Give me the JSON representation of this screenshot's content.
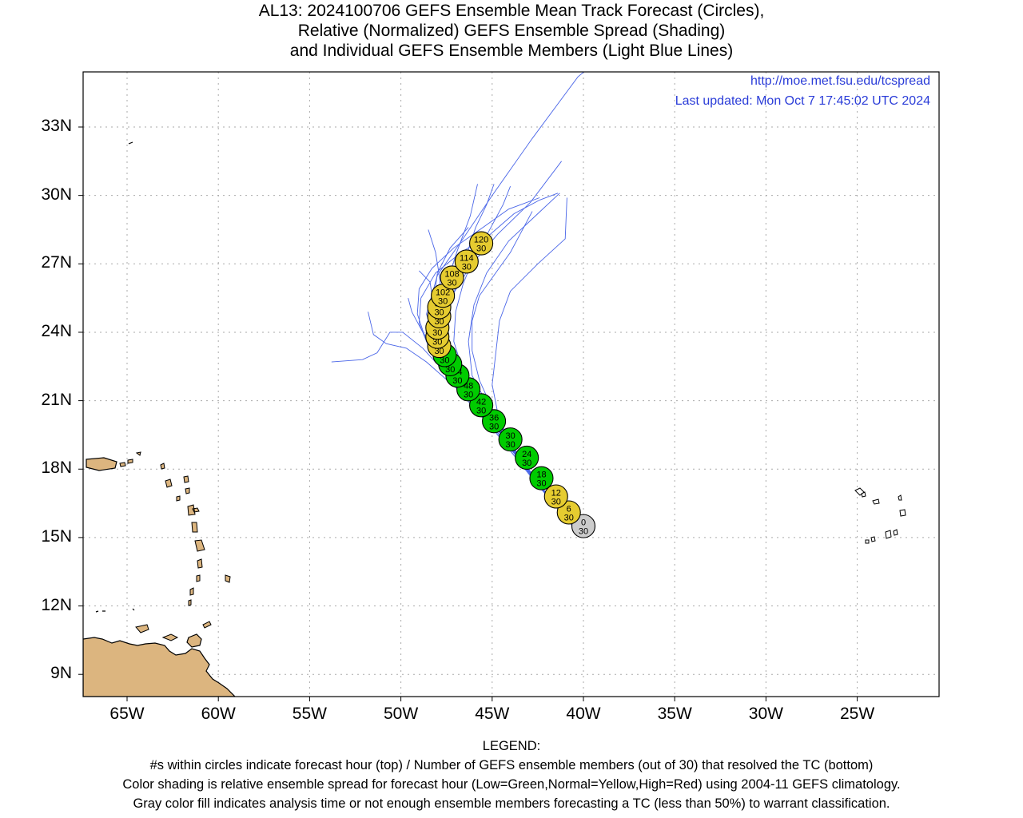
{
  "title": {
    "line1": "AL13: 2024100706 GEFS Ensemble Mean Track Forecast (Circles),",
    "line2": "Relative (Normalized) GEFS Ensemble Spread (Shading)",
    "line3": "and Individual GEFS Ensemble Members (Light Blue Lines)"
  },
  "credits": {
    "url": "http://moe.met.fsu.edu/tcspread",
    "updated": "Last updated: Mon Oct 7 17:45:02 UTC 2024"
  },
  "axes": {
    "lat_labels": [
      "33N",
      "30N",
      "27N",
      "24N",
      "21N",
      "18N",
      "15N",
      "12N",
      "9N"
    ],
    "lat_values": [
      33,
      30,
      27,
      24,
      21,
      18,
      15,
      12,
      9
    ],
    "lon_labels": [
      "65W",
      "60W",
      "55W",
      "50W",
      "45W",
      "40W",
      "35W",
      "30W",
      "25W"
    ],
    "lon_values": [
      -65,
      -60,
      -55,
      -50,
      -45,
      -40,
      -35,
      -30,
      -25
    ],
    "lon_range": [
      -67.4,
      -20.5
    ],
    "lat_range": [
      8,
      35.3
    ],
    "grid": "dotted"
  },
  "colors": {
    "land": "#dcb57f",
    "member_tracks": "#4a66e8",
    "low_spread": "#00cc00",
    "normal_spread": "#e6cc30",
    "analysis": "#cccccc",
    "credit_text": "#2a3cd8"
  },
  "mean_track": [
    {
      "hour": "0",
      "members": "30",
      "lon": -40.0,
      "lat": 15.5,
      "fill": "gray"
    },
    {
      "hour": "6",
      "members": "30",
      "lon": -40.8,
      "lat": 16.1,
      "fill": "yellow"
    },
    {
      "hour": "12",
      "members": "30",
      "lon": -41.5,
      "lat": 16.8,
      "fill": "yellow"
    },
    {
      "hour": "18",
      "members": "30",
      "lon": -42.3,
      "lat": 17.6,
      "fill": "green"
    },
    {
      "hour": "24",
      "members": "30",
      "lon": -43.1,
      "lat": 18.5,
      "fill": "green"
    },
    {
      "hour": "30",
      "members": "30",
      "lon": -44.0,
      "lat": 19.3,
      "fill": "green"
    },
    {
      "hour": "36",
      "members": "30",
      "lon": -44.9,
      "lat": 20.1,
      "fill": "green"
    },
    {
      "hour": "42",
      "members": "30",
      "lon": -45.6,
      "lat": 20.8,
      "fill": "green"
    },
    {
      "hour": "48",
      "members": "30",
      "lon": -46.3,
      "lat": 21.5,
      "fill": "green"
    },
    {
      "hour": "54",
      "members": "30",
      "lon": -46.9,
      "lat": 22.1,
      "fill": "green"
    },
    {
      "hour": "60",
      "members": "30",
      "lon": -47.3,
      "lat": 22.6,
      "fill": "green"
    },
    {
      "hour": "66",
      "members": "30",
      "lon": -47.6,
      "lat": 23.0,
      "fill": "green"
    },
    {
      "hour": "72",
      "members": "30",
      "lon": -47.9,
      "lat": 23.4,
      "fill": "yellow"
    },
    {
      "hour": "78",
      "members": "30",
      "lon": -48.0,
      "lat": 23.8,
      "fill": "yellow"
    },
    {
      "hour": "84",
      "members": "30",
      "lon": -48.0,
      "lat": 24.2,
      "fill": "yellow"
    },
    {
      "hour": "90",
      "members": "30",
      "lon": -47.9,
      "lat": 24.7,
      "fill": "yellow"
    },
    {
      "hour": "96",
      "members": "30",
      "lon": -47.9,
      "lat": 25.1,
      "fill": "yellow"
    },
    {
      "hour": "102",
      "members": "30",
      "lon": -47.7,
      "lat": 25.6,
      "fill": "yellow"
    },
    {
      "hour": "108",
      "members": "30",
      "lon": -47.2,
      "lat": 26.4,
      "fill": "yellow"
    },
    {
      "hour": "114",
      "members": "30",
      "lon": -46.4,
      "lat": 27.1,
      "fill": "yellow"
    },
    {
      "hour": "120",
      "members": "30",
      "lon": -45.6,
      "lat": 27.9,
      "fill": "yellow"
    }
  ],
  "member_tracks": [
    [
      [
        -40.6,
        15.5
      ],
      [
        -42.5,
        17.3
      ],
      [
        -44.5,
        19.5
      ],
      [
        -46.3,
        21.3
      ],
      [
        -47.9,
        23.0
      ],
      [
        -48.6,
        24.8
      ],
      [
        -48.0,
        26.5
      ],
      [
        -46.6,
        28.1
      ],
      [
        -45.0,
        30.0
      ],
      [
        -42.8,
        32.5
      ],
      [
        -40.3,
        35.2
      ],
      [
        -39.4,
        35.8
      ]
    ],
    [
      [
        -40.6,
        15.6
      ],
      [
        -42.7,
        17.5
      ],
      [
        -45.0,
        19.8
      ],
      [
        -47.2,
        21.9
      ],
      [
        -48.8,
        23.3
      ],
      [
        -49.9,
        24.0
      ],
      [
        -50.6,
        24.0
      ],
      [
        -51.3,
        23.1
      ],
      [
        -52.1,
        22.8
      ],
      [
        -53.8,
        22.7
      ]
    ],
    [
      [
        -40.6,
        15.6
      ],
      [
        -42.6,
        17.4
      ],
      [
        -44.8,
        19.6
      ],
      [
        -46.9,
        21.5
      ],
      [
        -48.6,
        22.7
      ],
      [
        -49.7,
        23.3
      ],
      [
        -50.8,
        23.5
      ],
      [
        -51.5,
        23.9
      ],
      [
        -51.8,
        24.9
      ]
    ],
    [
      [
        -40.6,
        15.6
      ],
      [
        -42.4,
        17.3
      ],
      [
        -44.3,
        19.3
      ],
      [
        -46.2,
        21.3
      ],
      [
        -47.3,
        22.8
      ],
      [
        -47.9,
        24.2
      ],
      [
        -47.6,
        25.9
      ],
      [
        -46.9,
        27.6
      ],
      [
        -46.2,
        29.1
      ],
      [
        -45.8,
        30.5
      ]
    ],
    [
      [
        -40.6,
        15.6
      ],
      [
        -42.3,
        17.2
      ],
      [
        -44.0,
        19.1
      ],
      [
        -45.8,
        21.0
      ],
      [
        -47.0,
        22.6
      ],
      [
        -47.6,
        24.1
      ],
      [
        -47.2,
        25.6
      ],
      [
        -46.2,
        26.9
      ],
      [
        -44.7,
        28.3
      ],
      [
        -42.9,
        29.7
      ],
      [
        -41.2,
        31.5
      ]
    ],
    [
      [
        -40.6,
        15.6
      ],
      [
        -42.2,
        17.1
      ],
      [
        -43.8,
        18.9
      ],
      [
        -45.1,
        20.6
      ],
      [
        -46.1,
        22.1
      ],
      [
        -46.3,
        23.6
      ],
      [
        -46.0,
        25.2
      ],
      [
        -45.3,
        26.6
      ],
      [
        -44.1,
        28.0
      ],
      [
        -42.5,
        29.2
      ],
      [
        -41.3,
        30.1
      ]
    ],
    [
      [
        -40.6,
        15.6
      ],
      [
        -42.0,
        16.9
      ],
      [
        -43.5,
        18.5
      ],
      [
        -44.6,
        20.1
      ],
      [
        -45.0,
        21.7
      ],
      [
        -44.8,
        23.1
      ],
      [
        -44.6,
        24.5
      ],
      [
        -44.0,
        25.8
      ],
      [
        -42.5,
        27.0
      ],
      [
        -41.0,
        28.1
      ],
      [
        -40.9,
        29.9
      ]
    ],
    [
      [
        -40.6,
        15.6
      ],
      [
        -42.1,
        17.0
      ],
      [
        -43.7,
        18.7
      ],
      [
        -45.3,
        20.5
      ],
      [
        -46.6,
        22.1
      ],
      [
        -47.7,
        23.6
      ],
      [
        -48.2,
        25.1
      ],
      [
        -48.4,
        26.2
      ],
      [
        -49.0,
        26.7
      ]
    ],
    [
      [
        -40.6,
        15.6
      ],
      [
        -42.3,
        17.2
      ],
      [
        -44.1,
        19.1
      ],
      [
        -45.7,
        20.9
      ],
      [
        -46.8,
        22.4
      ],
      [
        -47.4,
        23.7
      ],
      [
        -47.7,
        25.1
      ],
      [
        -47.9,
        26.5
      ],
      [
        -48.1,
        27.5
      ],
      [
        -48.5,
        28.5
      ]
    ],
    [
      [
        -40.6,
        15.6
      ],
      [
        -42.4,
        17.3
      ],
      [
        -44.4,
        19.3
      ],
      [
        -46.2,
        21.0
      ],
      [
        -47.6,
        22.4
      ],
      [
        -48.6,
        23.6
      ],
      [
        -49.1,
        24.8
      ],
      [
        -49.0,
        25.9
      ],
      [
        -48.3,
        26.8
      ],
      [
        -47.1,
        27.7
      ],
      [
        -45.5,
        28.6
      ],
      [
        -44.1,
        29.4
      ],
      [
        -42.4,
        29.9
      ]
    ],
    [
      [
        -40.6,
        15.6
      ],
      [
        -42.4,
        17.3
      ],
      [
        -44.3,
        19.2
      ],
      [
        -46.0,
        20.9
      ],
      [
        -47.4,
        22.3
      ],
      [
        -48.5,
        23.4
      ],
      [
        -49.0,
        24.4
      ],
      [
        -48.9,
        25.5
      ],
      [
        -48.1,
        26.6
      ],
      [
        -46.7,
        27.5
      ],
      [
        -45.1,
        28.3
      ],
      [
        -43.8,
        29.2
      ],
      [
        -42.4,
        29.8
      ],
      [
        -41.4,
        30.1
      ]
    ],
    [
      [
        -40.6,
        15.6
      ],
      [
        -42.2,
        17.1
      ],
      [
        -43.9,
        19.0
      ],
      [
        -45.5,
        20.8
      ],
      [
        -46.6,
        22.3
      ],
      [
        -47.1,
        23.6
      ],
      [
        -47.0,
        24.9
      ],
      [
        -46.6,
        26.1
      ],
      [
        -46.0,
        27.3
      ],
      [
        -45.2,
        28.4
      ],
      [
        -44.4,
        29.6
      ],
      [
        -44.0,
        30.4
      ]
    ],
    [
      [
        -40.6,
        15.6
      ],
      [
        -42.3,
        17.2
      ],
      [
        -44.2,
        19.2
      ],
      [
        -45.9,
        21.1
      ],
      [
        -47.1,
        22.7
      ],
      [
        -47.8,
        24.0
      ],
      [
        -48.2,
        25.4
      ],
      [
        -48.0,
        26.6
      ],
      [
        -47.3,
        27.7
      ],
      [
        -46.3,
        28.6
      ]
    ],
    [
      [
        -40.6,
        15.6
      ],
      [
        -42.5,
        17.4
      ],
      [
        -44.6,
        19.5
      ],
      [
        -46.4,
        21.3
      ],
      [
        -47.8,
        22.9
      ],
      [
        -48.8,
        24.0
      ],
      [
        -49.4,
        24.9
      ],
      [
        -49.6,
        25.5
      ]
    ],
    [
      [
        -40.6,
        15.6
      ],
      [
        -42.3,
        17.2
      ],
      [
        -44.1,
        19.1
      ],
      [
        -45.8,
        20.9
      ],
      [
        -47.0,
        22.4
      ],
      [
        -47.6,
        23.7
      ],
      [
        -47.4,
        25.0
      ],
      [
        -46.9,
        26.2
      ],
      [
        -46.4,
        27.4
      ],
      [
        -45.9,
        28.6
      ],
      [
        -45.3,
        29.6
      ],
      [
        -44.9,
        30.5
      ]
    ],
    [
      [
        -40.6,
        15.6
      ],
      [
        -42.1,
        17.0
      ],
      [
        -43.6,
        18.6
      ],
      [
        -44.8,
        20.3
      ],
      [
        -45.7,
        21.9
      ],
      [
        -46.1,
        23.2
      ],
      [
        -46.1,
        24.5
      ],
      [
        -45.7,
        25.6
      ],
      [
        -44.9,
        26.5
      ],
      [
        -44.0,
        27.5
      ],
      [
        -43.4,
        28.4
      ],
      [
        -42.8,
        29.3
      ]
    ]
  ],
  "legend": {
    "heading": "LEGEND:",
    "line1": "#s within circles indicate forecast hour (top) / Number of GEFS ensemble members (out of 30) that resolved the TC (bottom)",
    "line2": "Color shading is relative ensemble spread for forecast hour (Low=Green,Normal=Yellow,High=Red) using 2004-11 GEFS climatology.",
    "line3": "Gray color fill indicates analysis time or not enough ensemble members forecasting a TC (less than 50%) to warrant classification."
  }
}
